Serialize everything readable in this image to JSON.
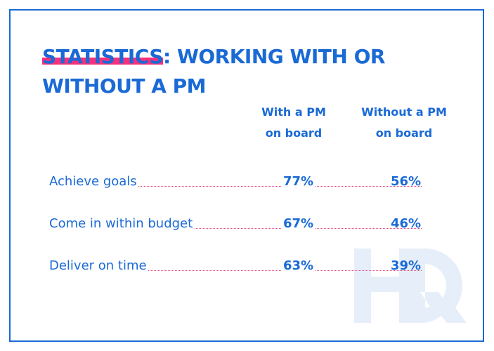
{
  "title": {
    "highlight": "STATISTICS",
    "rest_line1": ": WORKING WITH OR",
    "line2": "WITHOUT A PM"
  },
  "chart_data": {
    "type": "table",
    "columns": [
      "With a PM on board",
      "Without a PM on board"
    ],
    "column_lines": [
      [
        "With a PM",
        "on board"
      ],
      [
        "Without a PM",
        "on board"
      ]
    ],
    "rows": [
      {
        "label": "Achieve goals",
        "values": [
          "77%",
          "56%"
        ]
      },
      {
        "label": "Come in within budget",
        "values": [
          "67%",
          "46%"
        ]
      },
      {
        "label": "Deliver on time",
        "values": [
          "63%",
          "39%"
        ]
      }
    ]
  },
  "logo": "HQ",
  "colors": {
    "primary": "#1a6ad6",
    "accent": "#f5307c",
    "watermark": "#e6eff9"
  }
}
